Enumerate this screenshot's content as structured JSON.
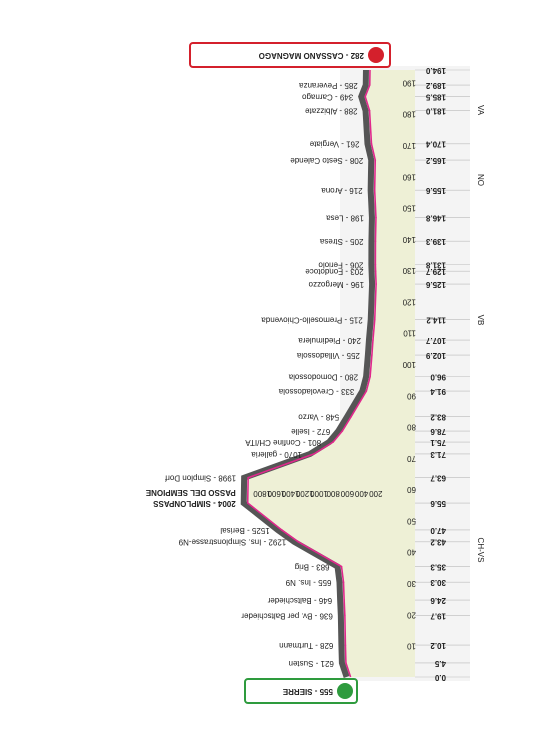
{
  "chart_data": {
    "type": "area",
    "x": [
      0.0,
      4.5,
      10.2,
      19.7,
      24.6,
      30.3,
      35.3,
      43.2,
      47.0,
      55.6,
      63.7,
      71.3,
      75.1,
      78.6,
      83.2,
      91.4,
      96.0,
      102.9,
      107.7,
      114.2,
      125.6,
      129.7,
      131.8,
      139.3,
      146.8,
      155.6,
      165.2,
      170.4,
      181.0,
      185.5,
      189.2,
      194.0
    ],
    "values": [
      555,
      621,
      628,
      636,
      646,
      655,
      683,
      1292,
      1525,
      2004,
      1998,
      1070,
      801,
      672,
      548,
      333,
      280,
      255,
      240,
      215,
      196,
      203,
      206,
      205,
      198,
      216,
      208,
      261,
      288,
      349,
      285,
      282
    ],
    "value_labels": [
      "555 - SIERRE",
      "621 - Susten",
      "628 - Turtmann",
      "636 - Bv. per Baltschieder",
      "646 - Baltschieder",
      "655 - Ins. N9",
      "683 - Brig",
      "1292 - Ins. Simplonstrasse-N9",
      "1525 - Berisal",
      "2004 - SIMPLONPASS",
      "1998 - Simplon Dorf",
      "1070 - galleria",
      "801 - Confine CH/ITA",
      "672 - Iselle",
      "548 - Varzo",
      "333 - Crevoladossola",
      "280 - Domodossola",
      "255 - Villadossola",
      "240 - Piedimulera",
      "215 - Premosello-Chiovenda",
      "196 - Mergozzo",
      "203 - Fondotoce",
      "206 - Feriolo",
      "205 - Stresa",
      "198 - Lesa",
      "216 - Arona",
      "208 - Sesto Calende",
      "261 - Vergiate",
      "288 - Albizzate",
      "349 - Carnago",
      "285 - Peveranza",
      "282 - CASSANO MAGNAGO"
    ],
    "annotation": "PASSO DEL SEMPIONE",
    "xlim": [
      0,
      194
    ],
    "xticks": [
      {
        "value": 0,
        "label": "0.0"
      },
      4.5,
      10.2,
      19.7,
      24.6,
      30.3,
      35.3,
      43.2,
      {
        "value": 47,
        "label": "47.0"
      },
      55.6,
      63.7,
      71.3,
      75.1,
      78.6,
      83.2,
      91.4,
      {
        "value": 96,
        "label": "96.0"
      },
      102.9,
      107.7,
      114.2,
      125.6,
      129.7,
      131.8,
      139.3,
      146.8,
      155.6,
      165.2,
      170.4,
      {
        "value": 181,
        "label": "181.0"
      },
      185.5,
      189.2,
      {
        "value": 194,
        "label": "194.0"
      }
    ],
    "km_ticks": [
      10,
      20,
      30,
      40,
      50,
      60,
      70,
      80,
      90,
      100,
      110,
      120,
      130,
      140,
      150,
      160,
      170,
      180,
      190
    ],
    "ylim": [
      0,
      2000
    ],
    "yticks": [
      200,
      400,
      600,
      800,
      1000,
      1200,
      1400,
      1600,
      1800
    ],
    "regions": [
      "CH-VS",
      "VB",
      "NO",
      "VA"
    ],
    "color": "#e0288c"
  }
}
